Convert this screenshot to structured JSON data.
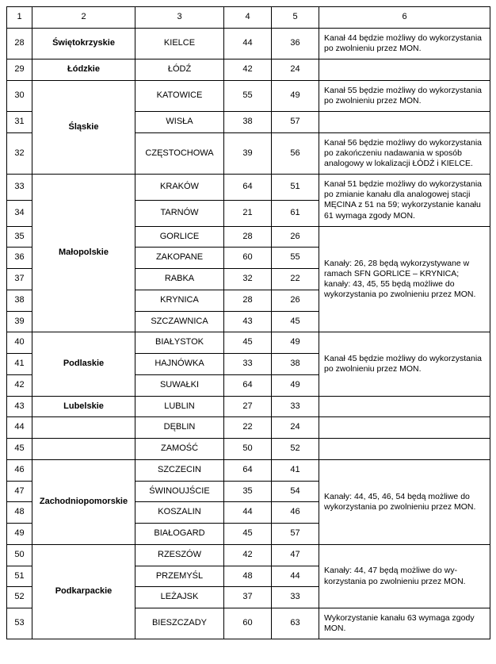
{
  "headers": [
    "1",
    "2",
    "3",
    "4",
    "5",
    "6"
  ],
  "rows": [
    {
      "num": "28",
      "region": "Świętokrzyskie",
      "city": "KIELCE",
      "v4": "44",
      "v5": "36",
      "note": "Kanał 44 będzie możliwy do wyko­rzystania po zwolnieniu przez MON."
    },
    {
      "num": "29",
      "region": "Łódzkie",
      "city": "ŁÓDŹ",
      "v4": "42",
      "v5": "24",
      "note": ""
    },
    {
      "num": "30",
      "city": "KATOWICE",
      "v4": "55",
      "v5": "49",
      "note": "Kanał 55 będzie możliwy do wyko­rzystania po zwolnieniu przez MON."
    },
    {
      "num": "31",
      "region": "Śląskie",
      "region_rs": 3,
      "city": "WISŁA",
      "v4": "38",
      "v5": "57",
      "note": ""
    },
    {
      "num": "32",
      "city": "CZĘSTOCHOWA",
      "v4": "39",
      "v5": "56",
      "note": "Kanał 56 będzie możliwy do wyko­rzystania po zakończeniu nadawa­nia w sposób analogowy w lokali­zacji ŁÓDŹ i KIELCE."
    },
    {
      "num": "33",
      "city": "KRAKÓW",
      "v4": "64",
      "v5": "51",
      "note": "Kanał 51 będzie możliwy do wyko­rzystania po zmianie kanału dla ana­logowej stacji MĘCINA z 51 na 59; wykorzystanie kanału 61 wymaga zgody MON.",
      "note_rs": 2
    },
    {
      "num": "34",
      "city": "TARNÓW",
      "v4": "21",
      "v5": "61"
    },
    {
      "num": "35",
      "region": "Małopolskie",
      "region_rs": 7,
      "city": "GORLICE",
      "v4": "28",
      "v5": "26",
      "note": "Kanały: 26, 28 będą wykorzystywane w ramach SFN GORLICE – KRYNICA; kanały: 43, 45, 55 będą możliwe do wykorzystania po zwolnieniu przez MON.",
      "note_rs": 5
    },
    {
      "num": "36",
      "city": "ZAKOPANE",
      "v4": "60",
      "v5": "55"
    },
    {
      "num": "37",
      "city": "RABKA",
      "v4": "32",
      "v5": "22"
    },
    {
      "num": "38",
      "city": "KRYNICA",
      "v4": "28",
      "v5": "26"
    },
    {
      "num": "39",
      "city": "SZCZAWNICA",
      "v4": "43",
      "v5": "45"
    },
    {
      "num": "40",
      "city": "BIAŁYSTOK",
      "v4": "45",
      "v5": "49",
      "note": "Kanał 45 będzie możliwy do wyko­rzystania po zwolnieniu przez MON.",
      "note_rs": 3
    },
    {
      "num": "41",
      "region": "Podlaskie",
      "region_rs": 3,
      "city": "HAJNÓWKA",
      "v4": "33",
      "v5": "38"
    },
    {
      "num": "42",
      "city": "SUWAŁKI",
      "v4": "64",
      "v5": "49"
    },
    {
      "num": "43",
      "region": "Lubelskie",
      "city": "LUBLIN",
      "v4": "27",
      "v5": "33",
      "note": ""
    },
    {
      "num": "44",
      "region": "",
      "city": "DĘBLIN",
      "v4": "22",
      "v5": "24",
      "note": ""
    },
    {
      "num": "45",
      "region": "",
      "city": "ZAMOŚĆ",
      "v4": "50",
      "v5": "52",
      "note": ""
    },
    {
      "num": "46",
      "city": "SZCZECIN",
      "v4": "64",
      "v5": "41",
      "note": "Kanały: 44, 45, 46, 54 będą możliwe do wykorzystania po zwolnieniu przez MON.",
      "note_rs": 4
    },
    {
      "num": "47",
      "region": "Zachodniopomorskie",
      "region_rs": 4,
      "city": "ŚWINOUJŚCIE",
      "v4": "35",
      "v5": "54"
    },
    {
      "num": "48",
      "city": "KOSZALIN",
      "v4": "44",
      "v5": "46"
    },
    {
      "num": "49",
      "city": "BIAŁOGARD",
      "v4": "45",
      "v5": "57"
    },
    {
      "num": "50",
      "city": "RZESZÓW",
      "v4": "42",
      "v5": "47",
      "note": "Kanały: 44, 47 będą możliwe do wy­korzystania po zwolnieniu przez MON.",
      "note_rs": 3
    },
    {
      "num": "51",
      "city": "PRZEMYŚL",
      "v4": "48",
      "v5": "44"
    },
    {
      "num": "52",
      "region": "Podkarpackie",
      "region_rs": 4,
      "city": "LEŻAJSK",
      "v4": "37",
      "v5": "33"
    },
    {
      "num": "53",
      "city": "BIESZCZADY",
      "v4": "60",
      "v5": "63",
      "note": "Wykorzystanie kanału 63 wymaga zgody MON."
    }
  ],
  "region_starts": {
    "30": true,
    "33": true,
    "40": true,
    "46": true,
    "50": true
  }
}
